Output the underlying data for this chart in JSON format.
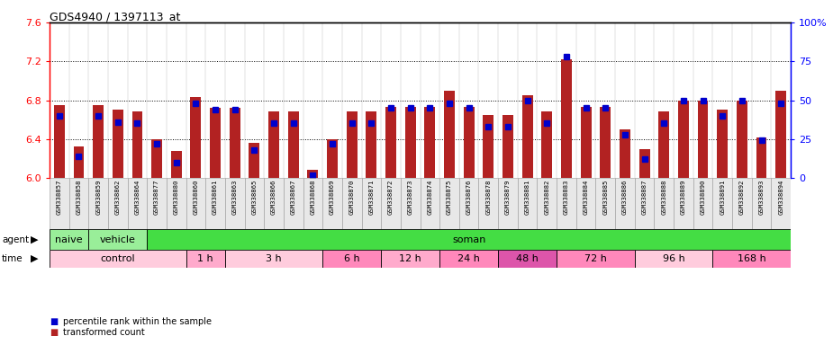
{
  "title": "GDS4940 / 1397113_at",
  "samples": [
    "GSM338857",
    "GSM338858",
    "GSM338859",
    "GSM338862",
    "GSM338864",
    "GSM338877",
    "GSM338880",
    "GSM338860",
    "GSM338861",
    "GSM338863",
    "GSM338865",
    "GSM338866",
    "GSM338867",
    "GSM338868",
    "GSM338869",
    "GSM338870",
    "GSM338871",
    "GSM338872",
    "GSM338873",
    "GSM338874",
    "GSM338875",
    "GSM338876",
    "GSM338878",
    "GSM338879",
    "GSM338881",
    "GSM338882",
    "GSM338883",
    "GSM338884",
    "GSM338885",
    "GSM338886",
    "GSM338887",
    "GSM338888",
    "GSM338889",
    "GSM338890",
    "GSM338891",
    "GSM338892",
    "GSM338893",
    "GSM338894"
  ],
  "transformed_counts": [
    6.75,
    6.32,
    6.75,
    6.7,
    6.68,
    6.4,
    6.28,
    6.83,
    6.72,
    6.72,
    6.36,
    6.68,
    6.68,
    6.08,
    6.4,
    6.68,
    6.68,
    6.73,
    6.73,
    6.73,
    6.9,
    6.73,
    6.65,
    6.65,
    6.85,
    6.68,
    7.22,
    6.73,
    6.73,
    6.5,
    6.3,
    6.68,
    6.8,
    6.8,
    6.7,
    6.8,
    6.42,
    6.9
  ],
  "percentile_ranks": [
    40,
    14,
    40,
    36,
    35,
    22,
    10,
    48,
    44,
    44,
    18,
    35,
    35,
    2,
    22,
    35,
    35,
    45,
    45,
    45,
    48,
    45,
    33,
    33,
    50,
    35,
    78,
    45,
    45,
    28,
    12,
    35,
    50,
    50,
    40,
    50,
    24,
    48
  ],
  "ymin": 6.0,
  "ymax": 7.6,
  "yticks_left": [
    6.0,
    6.4,
    6.8,
    7.2,
    7.6
  ],
  "yticks_right": [
    0,
    25,
    50,
    75,
    100
  ],
  "bar_color": "#B22222",
  "percentile_color": "#0000CC",
  "agent_groups": [
    {
      "label": "naive",
      "start": 0,
      "end": 2,
      "color": "#99EE99"
    },
    {
      "label": "vehicle",
      "start": 2,
      "end": 5,
      "color": "#99EE99"
    },
    {
      "label": "soman",
      "start": 5,
      "end": 38,
      "color": "#44DD44"
    }
  ],
  "time_groups": [
    {
      "label": "control",
      "start": 0,
      "end": 7,
      "color": "#FFCCDD"
    },
    {
      "label": "1 h",
      "start": 7,
      "end": 9,
      "color": "#FFAACC"
    },
    {
      "label": "3 h",
      "start": 9,
      "end": 14,
      "color": "#FFCCDD"
    },
    {
      "label": "6 h",
      "start": 14,
      "end": 17,
      "color": "#FF88BB"
    },
    {
      "label": "12 h",
      "start": 17,
      "end": 20,
      "color": "#FFAACC"
    },
    {
      "label": "24 h",
      "start": 20,
      "end": 23,
      "color": "#FF88BB"
    },
    {
      "label": "48 h",
      "start": 23,
      "end": 26,
      "color": "#DD55AA"
    },
    {
      "label": "72 h",
      "start": 26,
      "end": 30,
      "color": "#FF88BB"
    },
    {
      "label": "96 h",
      "start": 30,
      "end": 34,
      "color": "#FFCCDD"
    },
    {
      "label": "168 h",
      "start": 34,
      "end": 38,
      "color": "#FF88BB"
    }
  ],
  "legend": [
    {
      "label": "transformed count",
      "color": "#B22222"
    },
    {
      "label": "percentile rank within the sample",
      "color": "#0000CC"
    }
  ]
}
